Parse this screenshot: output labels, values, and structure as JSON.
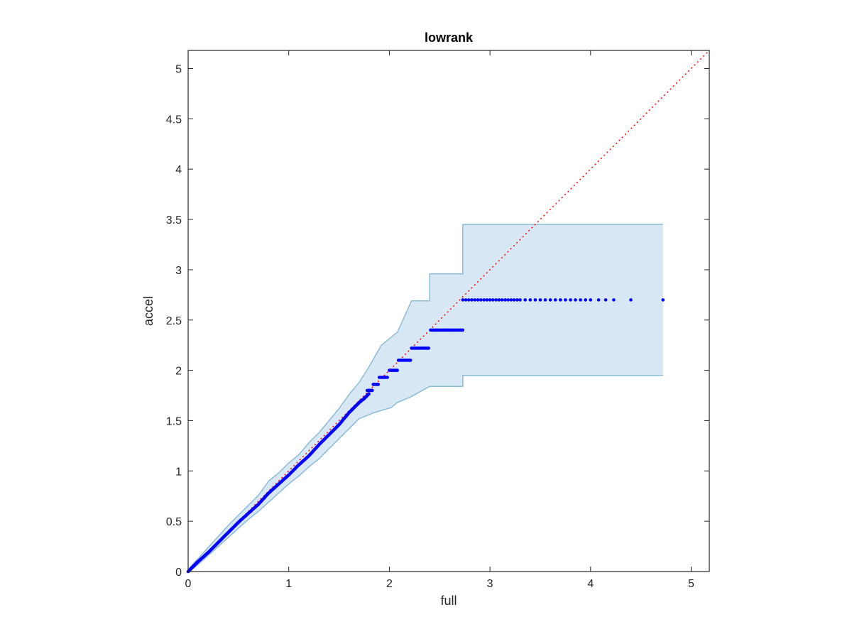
{
  "chart_data": {
    "type": "scatter",
    "title": "lowrank",
    "xlabel": "full",
    "ylabel": "accel",
    "xlim": [
      0,
      5.18
    ],
    "ylim": [
      0,
      5.18
    ],
    "xticks": [
      0,
      1,
      2,
      3,
      4,
      5
    ],
    "xtick_labels": [
      "0",
      "1",
      "2",
      "3",
      "4",
      "5"
    ],
    "yticks": [
      0,
      0.5,
      1,
      1.5,
      2,
      2.5,
      3,
      3.5,
      4,
      4.5,
      5
    ],
    "ytick_labels": [
      "0",
      "0.5",
      "1",
      "1.5",
      "2",
      "2.5",
      "3",
      "3.5",
      "4",
      "4.5",
      "5"
    ],
    "grid": false,
    "legend": "none",
    "colors": {
      "points": "#0000ff",
      "reference_line": "#ff0000",
      "band_fill": "#d7e7f4",
      "band_edge": "#8bbcd9",
      "axes": "#262626"
    },
    "reference_line": {
      "style": "dotted",
      "from": [
        0,
        0
      ],
      "to": [
        5.18,
        5.18
      ]
    },
    "band_upper": [
      [
        0.0,
        0.02
      ],
      [
        0.05,
        0.08
      ],
      [
        0.1,
        0.13
      ],
      [
        0.2,
        0.24
      ],
      [
        0.3,
        0.35
      ],
      [
        0.4,
        0.46
      ],
      [
        0.5,
        0.56
      ],
      [
        0.6,
        0.66
      ],
      [
        0.7,
        0.76
      ],
      [
        0.8,
        0.9
      ],
      [
        0.9,
        0.98
      ],
      [
        1.0,
        1.08
      ],
      [
        1.1,
        1.16
      ],
      [
        1.2,
        1.28
      ],
      [
        1.3,
        1.38
      ],
      [
        1.4,
        1.5
      ],
      [
        1.5,
        1.62
      ],
      [
        1.6,
        1.76
      ],
      [
        1.7,
        1.88
      ],
      [
        1.8,
        2.04
      ],
      [
        1.92,
        2.25
      ],
      [
        2.08,
        2.38
      ],
      [
        2.22,
        2.69
      ],
      [
        2.4,
        2.69
      ],
      [
        2.4,
        2.96
      ],
      [
        2.73,
        2.96
      ],
      [
        2.73,
        3.45
      ],
      [
        4.72,
        3.45
      ]
    ],
    "band_lower": [
      [
        0.0,
        0.0
      ],
      [
        0.05,
        0.03
      ],
      [
        0.1,
        0.07
      ],
      [
        0.2,
        0.16
      ],
      [
        0.3,
        0.25
      ],
      [
        0.4,
        0.34
      ],
      [
        0.5,
        0.43
      ],
      [
        0.6,
        0.52
      ],
      [
        0.7,
        0.6
      ],
      [
        0.8,
        0.69
      ],
      [
        0.9,
        0.78
      ],
      [
        1.0,
        0.87
      ],
      [
        1.1,
        0.95
      ],
      [
        1.2,
        1.04
      ],
      [
        1.3,
        1.12
      ],
      [
        1.4,
        1.22
      ],
      [
        1.5,
        1.32
      ],
      [
        1.6,
        1.42
      ],
      [
        1.7,
        1.52
      ],
      [
        1.85,
        1.58
      ],
      [
        2.02,
        1.63
      ],
      [
        2.08,
        1.68
      ],
      [
        2.22,
        1.74
      ],
      [
        2.4,
        1.84
      ],
      [
        2.73,
        1.84
      ],
      [
        2.73,
        1.95
      ],
      [
        4.72,
        1.95
      ]
    ],
    "trend_points": [
      [
        0.0,
        0.0
      ],
      [
        0.05,
        0.05
      ],
      [
        0.1,
        0.1
      ],
      [
        0.2,
        0.19
      ],
      [
        0.3,
        0.29
      ],
      [
        0.4,
        0.39
      ],
      [
        0.5,
        0.49
      ],
      [
        0.6,
        0.58
      ],
      [
        0.7,
        0.67
      ],
      [
        0.8,
        0.78
      ],
      [
        0.9,
        0.87
      ],
      [
        1.0,
        0.96
      ],
      [
        1.1,
        1.06
      ],
      [
        1.2,
        1.15
      ],
      [
        1.3,
        1.26
      ],
      [
        1.4,
        1.36
      ],
      [
        1.5,
        1.46
      ],
      [
        1.6,
        1.58
      ],
      [
        1.7,
        1.68
      ],
      [
        1.75,
        1.72
      ],
      [
        1.8,
        1.77
      ]
    ],
    "step_segments": [
      {
        "y": 1.8,
        "x": [
          1.78,
          1.83
        ]
      },
      {
        "y": 1.86,
        "x": [
          1.84,
          1.89
        ]
      },
      {
        "y": 1.93,
        "x": [
          1.9,
          1.98
        ]
      },
      {
        "y": 2.0,
        "x": [
          2.0,
          2.08
        ]
      },
      {
        "y": 2.1,
        "x": [
          2.09,
          2.21
        ]
      },
      {
        "y": 2.22,
        "x": [
          2.22,
          2.39
        ]
      },
      {
        "y": 2.4,
        "x": [
          2.41,
          2.73
        ]
      }
    ],
    "top_row": {
      "y": 2.7,
      "x": [
        2.73,
        2.76,
        2.79,
        2.82,
        2.85,
        2.88,
        2.91,
        2.94,
        2.97,
        3.0,
        3.03,
        3.06,
        3.09,
        3.12,
        3.15,
        3.18,
        3.21,
        3.24,
        3.27,
        3.3,
        3.35,
        3.4,
        3.45,
        3.5,
        3.55,
        3.6,
        3.65,
        3.7,
        3.75,
        3.8,
        3.85,
        3.9,
        3.95,
        4.0,
        4.08,
        4.15,
        4.23,
        4.4,
        4.72
      ]
    }
  }
}
